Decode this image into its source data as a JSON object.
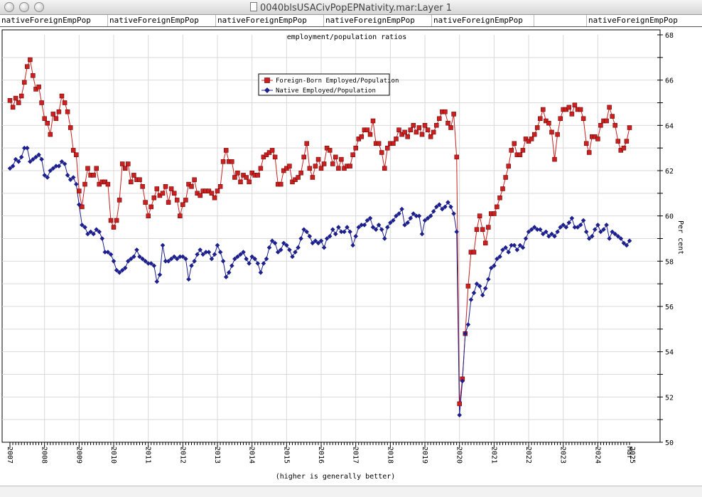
{
  "window": {
    "title": "0040blsUSACivPopEPNativity.mar:Layer 1"
  },
  "tabs": [
    "nativeForeignEmpPop",
    "nativeForeignEmpPop",
    "nativeForeignEmpPop",
    "nativeForeignEmpPop",
    "nativeForeignEmpPop",
    "",
    "nativeForeignEmpPop"
  ],
  "colors": {
    "foreign": "#cc1f1f",
    "native": "#1c1f8c",
    "grid": "#d9d9d9"
  },
  "chart_data": {
    "type": "line",
    "title": "employment/population ratios",
    "footer": "(higher is generally better)",
    "ylabel": "Per cent",
    "ylim": [
      50,
      68
    ],
    "yticks": [
      50,
      52,
      54,
      56,
      58,
      60,
      62,
      64,
      66,
      68
    ],
    "x_start": "2007-01",
    "x_end": "2025-03",
    "xticks": [
      "2007",
      "2008",
      "2009",
      "2010",
      "2011",
      "2012",
      "2013",
      "2014",
      "2015",
      "2016",
      "2017",
      "2018",
      "2019",
      "2020",
      "2021",
      "2022",
      "2023",
      "2024",
      "2025",
      "Mar"
    ],
    "grid": true,
    "legend_position": "top-center",
    "series": [
      {
        "name": "Foreign-Born Employed/Population",
        "marker": "square",
        "color": "#cc1f1f",
        "values": [
          65.1,
          64.8,
          65.2,
          65.0,
          65.3,
          65.9,
          66.6,
          66.9,
          66.2,
          65.6,
          65.7,
          65.0,
          64.3,
          64.1,
          63.6,
          64.5,
          64.3,
          64.6,
          65.3,
          65.0,
          64.6,
          63.9,
          62.9,
          62.7,
          61.1,
          60.4,
          61.4,
          62.1,
          61.8,
          61.8,
          62.1,
          61.4,
          61.5,
          61.5,
          61.4,
          59.8,
          59.5,
          59.8,
          60.7,
          62.3,
          62.1,
          62.3,
          61.5,
          61.8,
          61.6,
          61.6,
          61.3,
          60.6,
          60.0,
          60.4,
          60.8,
          61.2,
          60.9,
          61.0,
          61.3,
          60.6,
          61.2,
          61.0,
          60.7,
          60.0,
          60.5,
          60.7,
          61.4,
          61.3,
          61.6,
          61.0,
          60.9,
          61.1,
          61.1,
          61.1,
          61.0,
          60.8,
          61.1,
          61.3,
          62.4,
          62.9,
          62.4,
          62.4,
          61.7,
          61.9,
          61.5,
          61.8,
          61.7,
          61.5,
          61.9,
          61.8,
          61.8,
          62.1,
          62.6,
          62.7,
          62.8,
          62.9,
          62.6,
          61.4,
          61.4,
          62.0,
          62.1,
          62.2,
          61.5,
          61.6,
          61.7,
          61.9,
          62.6,
          63.2,
          62.1,
          61.7,
          62.2,
          62.5,
          62.1,
          62.3,
          63.0,
          62.9,
          62.3,
          62.6,
          62.1,
          62.5,
          62.1,
          62.2,
          62.2,
          62.7,
          63.0,
          63.4,
          63.5,
          63.8,
          63.8,
          63.6,
          64.2,
          63.2,
          63.2,
          62.8,
          62.1,
          63.0,
          63.2,
          63.2,
          63.4,
          63.8,
          63.6,
          63.7,
          63.5,
          63.8,
          64.0,
          63.7,
          63.9,
          63.6,
          64.0,
          63.8,
          63.5,
          63.7,
          64.0,
          64.3,
          64.6,
          64.6,
          64.1,
          63.9,
          64.5,
          62.6,
          51.7,
          52.8,
          54.8,
          56.9,
          58.4,
          58.4,
          59.4,
          60.0,
          59.4,
          58.8,
          59.5,
          60.1,
          60.1,
          60.4,
          60.8,
          61.2,
          61.7,
          62.2,
          62.9,
          63.2,
          62.7,
          62.7,
          62.9,
          63.4,
          63.3,
          63.4,
          63.6,
          63.9,
          64.3,
          64.7,
          64.2,
          64.1,
          63.7,
          62.5,
          63.6,
          64.3,
          64.7,
          64.7,
          64.8,
          64.5,
          64.9,
          64.7,
          64.7,
          64.3,
          63.2,
          62.8,
          63.5,
          63.5,
          63.4,
          64.0,
          64.2,
          64.2,
          64.8,
          64.4,
          64.0,
          63.3,
          62.9,
          63.0,
          63.3,
          63.9
        ]
      },
      {
        "name": "Native Employed/Population",
        "marker": "diamond",
        "color": "#1c1f8c",
        "values": [
          62.1,
          62.2,
          62.5,
          62.4,
          62.6,
          63.0,
          63.0,
          62.4,
          62.5,
          62.6,
          62.7,
          62.5,
          61.8,
          61.7,
          62.0,
          62.1,
          62.2,
          62.2,
          62.4,
          62.3,
          61.8,
          61.6,
          61.7,
          61.4,
          60.5,
          59.6,
          59.5,
          59.2,
          59.3,
          59.2,
          59.4,
          59.3,
          59.0,
          58.4,
          58.4,
          58.3,
          58.0,
          57.6,
          57.5,
          57.6,
          57.7,
          58.0,
          58.1,
          58.2,
          58.5,
          58.2,
          58.1,
          58.0,
          57.9,
          57.9,
          57.8,
          57.1,
          57.4,
          58.7,
          58.0,
          58.0,
          58.1,
          58.2,
          58.1,
          58.2,
          58.2,
          58.1,
          57.2,
          57.8,
          58.0,
          58.3,
          58.5,
          58.3,
          58.4,
          58.4,
          58.1,
          58.3,
          58.7,
          58.4,
          58.0,
          57.3,
          57.5,
          57.8,
          58.1,
          58.2,
          58.3,
          58.4,
          58.1,
          57.9,
          58.2,
          58.1,
          57.9,
          57.5,
          57.9,
          58.1,
          58.6,
          58.9,
          58.8,
          58.4,
          58.5,
          58.8,
          58.7,
          58.5,
          58.2,
          58.4,
          58.6,
          59.0,
          59.4,
          59.3,
          59.1,
          58.8,
          58.9,
          58.8,
          58.9,
          58.6,
          59.0,
          59.1,
          59.4,
          59.2,
          59.5,
          59.3,
          59.3,
          59.5,
          59.3,
          58.7,
          59.1,
          59.5,
          59.6,
          59.6,
          59.8,
          59.9,
          59.5,
          59.4,
          59.6,
          59.4,
          59.0,
          59.5,
          59.7,
          59.8,
          60.0,
          60.1,
          60.3,
          59.6,
          59.7,
          59.9,
          60.1,
          60.0,
          60.0,
          59.2,
          59.8,
          59.9,
          60.0,
          60.2,
          60.4,
          60.5,
          60.3,
          60.4,
          60.6,
          60.4,
          60.1,
          59.3,
          51.2,
          52.7,
          54.8,
          55.2,
          56.3,
          56.6,
          57.0,
          56.9,
          56.5,
          56.8,
          57.2,
          57.7,
          57.8,
          58.1,
          58.2,
          58.5,
          58.6,
          58.4,
          58.7,
          58.7,
          58.5,
          58.7,
          58.6,
          59.0,
          59.3,
          59.4,
          59.5,
          59.4,
          59.4,
          59.2,
          59.3,
          59.1,
          59.2,
          59.1,
          59.3,
          59.5,
          59.6,
          59.5,
          59.7,
          59.9,
          59.5,
          59.5,
          59.6,
          59.8,
          59.3,
          59.0,
          59.1,
          59.4,
          59.6,
          59.3,
          59.4,
          59.6,
          59.0,
          59.3,
          59.2,
          59.1,
          59.0,
          58.8,
          58.7,
          58.9
        ]
      }
    ]
  }
}
